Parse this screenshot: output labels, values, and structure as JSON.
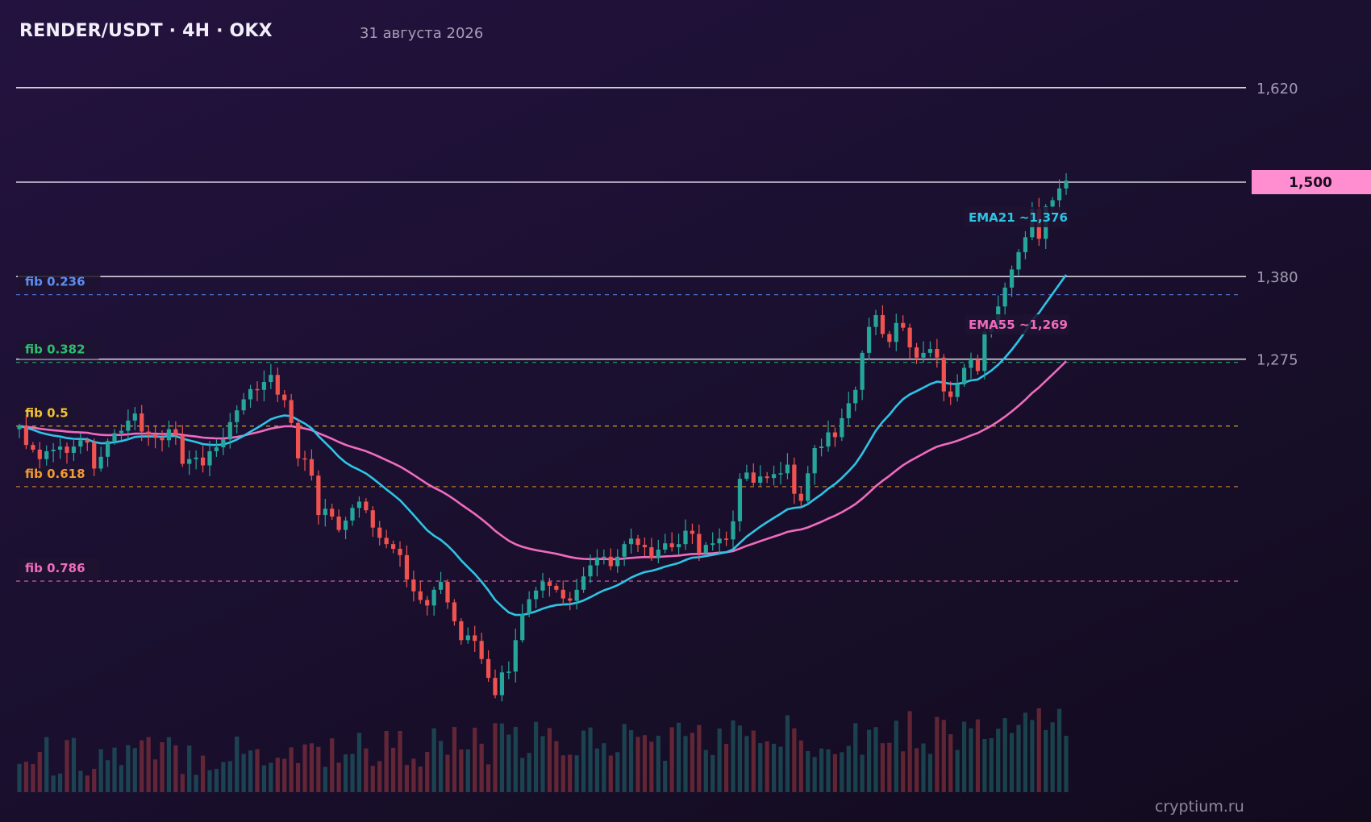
{
  "header": {
    "title": "RENDER/USDT · 4H · OKX",
    "date": "31 августа 2026"
  },
  "watermark": "cryptium.ru",
  "colors": {
    "up": "#26a69a",
    "down": "#ef5350",
    "ema21": "#2ec4e6",
    "ema55": "#f06bbd",
    "level_line": "#e8e6ee",
    "price_badge_bg": "#ff8ed0",
    "fib_0_236": "#5b8ef0",
    "fib_0_382": "#2bbf6e",
    "fib_0_5": "#f2c230",
    "fib_0_618": "#f29a30",
    "fib_0_786": "#f06bbd"
  },
  "chart_data": {
    "type": "candlestick",
    "symbol": "RENDER/USDT",
    "timeframe": "4H",
    "exchange": "OKX",
    "ylim": [
      0.82,
      1.67
    ],
    "price_levels": [
      {
        "value": 1.62,
        "label": "1,620"
      },
      {
        "value": 1.5,
        "label": "1,500",
        "current": true
      },
      {
        "value": 1.38,
        "label": "1,380"
      },
      {
        "value": 1.275,
        "label": "1,275"
      }
    ],
    "fib_levels": [
      {
        "ratio": "fib 0.236",
        "value": 1.357,
        "color": "#5b8ef0"
      },
      {
        "ratio": "fib 0.382",
        "value": 1.271,
        "color": "#2bbf6e"
      },
      {
        "ratio": "fib 0.5",
        "value": 1.19,
        "color": "#f2c230"
      },
      {
        "ratio": "fib 0.618",
        "value": 1.113,
        "color": "#f29a30"
      },
      {
        "ratio": "fib 0.786",
        "value": 0.993,
        "color": "#f06bbd"
      }
    ],
    "ema_labels": [
      {
        "name": "EMA21",
        "text": "EMA21 ~1,376",
        "value": 1.376
      },
      {
        "name": "EMA55",
        "text": "EMA55 ~1,269",
        "value": 1.269
      }
    ],
    "closes": [
      1.19,
      1.166,
      1.16,
      1.148,
      1.158,
      1.16,
      1.164,
      1.156,
      1.164,
      1.172,
      1.169,
      1.136,
      1.151,
      1.171,
      1.181,
      1.184,
      1.197,
      1.206,
      1.183,
      1.179,
      1.175,
      1.172,
      1.186,
      1.178,
      1.142,
      1.148,
      1.15,
      1.14,
      1.158,
      1.163,
      1.173,
      1.195,
      1.21,
      1.224,
      1.237,
      1.236,
      1.246,
      1.255,
      1.23,
      1.223,
      1.194,
      1.149,
      1.148,
      1.127,
      1.077,
      1.085,
      1.075,
      1.058,
      1.07,
      1.086,
      1.094,
      1.083,
      1.061,
      1.048,
      1.04,
      1.034,
      1.026,
      0.995,
      0.98,
      0.969,
      0.962,
      0.982,
      0.992,
      0.966,
      0.942,
      0.918,
      0.924,
      0.917,
      0.894,
      0.87,
      0.848,
      0.877,
      0.878,
      0.918,
      0.951,
      0.97,
      0.981,
      0.992,
      0.987,
      0.982,
      0.971,
      0.968,
      0.982,
      0.999,
      1.013,
      1.023,
      1.024,
      1.012,
      1.024,
      1.04,
      1.047,
      1.039,
      1.036,
      1.022,
      1.033,
      1.041,
      1.036,
      1.04,
      1.057,
      1.053,
      1.029,
      1.039,
      1.041,
      1.047,
      1.046,
      1.069,
      1.123,
      1.131,
      1.118,
      1.126,
      1.124,
      1.129,
      1.13,
      1.141,
      1.104,
      1.095,
      1.13,
      1.162,
      1.164,
      1.182,
      1.176,
      1.2,
      1.219,
      1.236,
      1.283,
      1.316,
      1.331,
      1.307,
      1.297,
      1.321,
      1.315,
      1.29,
      1.277,
      1.283,
      1.288,
      1.277,
      1.234,
      1.227,
      1.243,
      1.264,
      1.275,
      1.26,
      1.31,
      1.319,
      1.342,
      1.366,
      1.389,
      1.411,
      1.43,
      1.466,
      1.428,
      1.469,
      1.477,
      1.492,
      1.502
    ]
  }
}
